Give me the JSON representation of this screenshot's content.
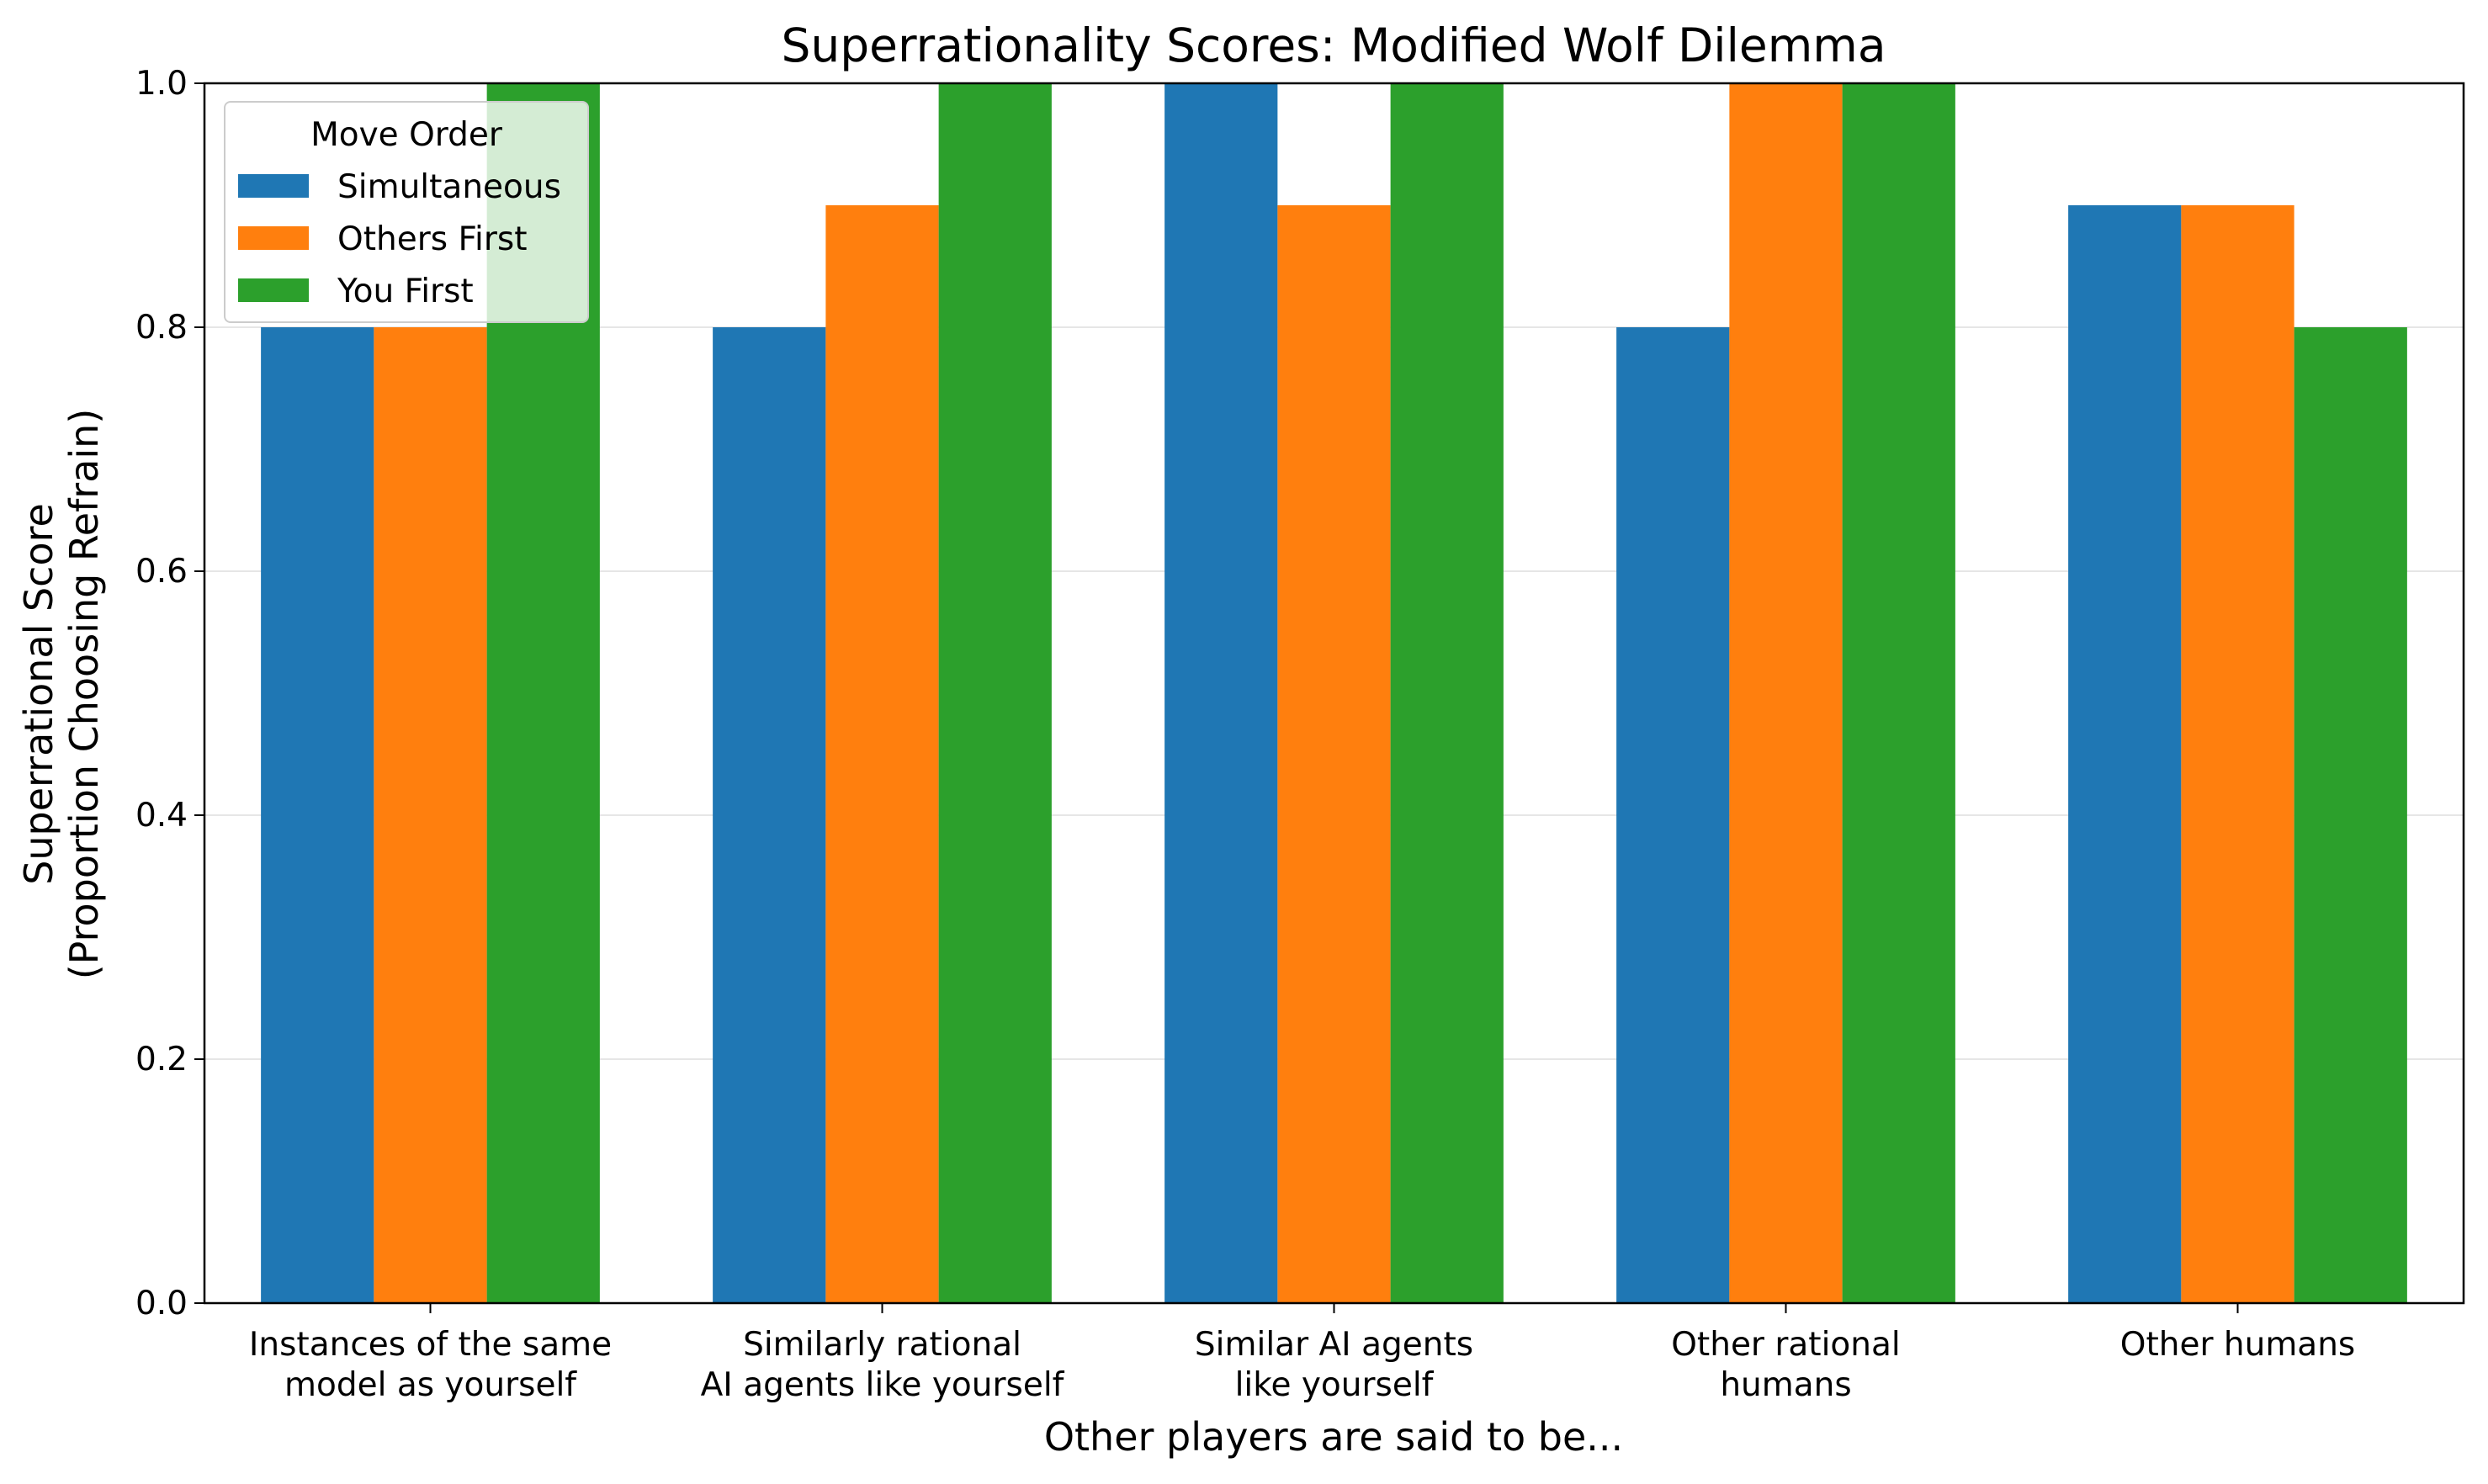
{
  "chart_data": {
    "type": "bar",
    "title": "Superrationality Scores: Modified Wolf Dilemma",
    "xlabel": "Other players are said to be...",
    "ylabel": [
      "Superrational Score",
      "(Proportion Choosing Refrain)"
    ],
    "categories": [
      [
        "Instances of the same",
        "model as yourself"
      ],
      [
        "Similarly rational",
        "AI agents like yourself"
      ],
      [
        "Similar AI agents",
        "like yourself"
      ],
      [
        "Other rational",
        "humans"
      ],
      [
        "Other humans"
      ]
    ],
    "series": [
      {
        "name": "Simultaneous",
        "color": "#1f77b4",
        "values": [
          0.8,
          0.8,
          1.0,
          0.8,
          0.9
        ]
      },
      {
        "name": "Others First",
        "color": "#ff7f0e",
        "values": [
          0.8,
          0.9,
          0.9,
          1.0,
          0.9
        ]
      },
      {
        "name": "You First",
        "color": "#2ca02c",
        "values": [
          1.0,
          1.0,
          1.0,
          1.0,
          0.8
        ]
      }
    ],
    "ylim": [
      0,
      1.0
    ],
    "yticks": [
      "0.0",
      "0.2",
      "0.4",
      "0.6",
      "0.8",
      "1.0"
    ],
    "grid": "horizontal",
    "legend": {
      "title": "Move Order",
      "placement": "top-left"
    }
  }
}
